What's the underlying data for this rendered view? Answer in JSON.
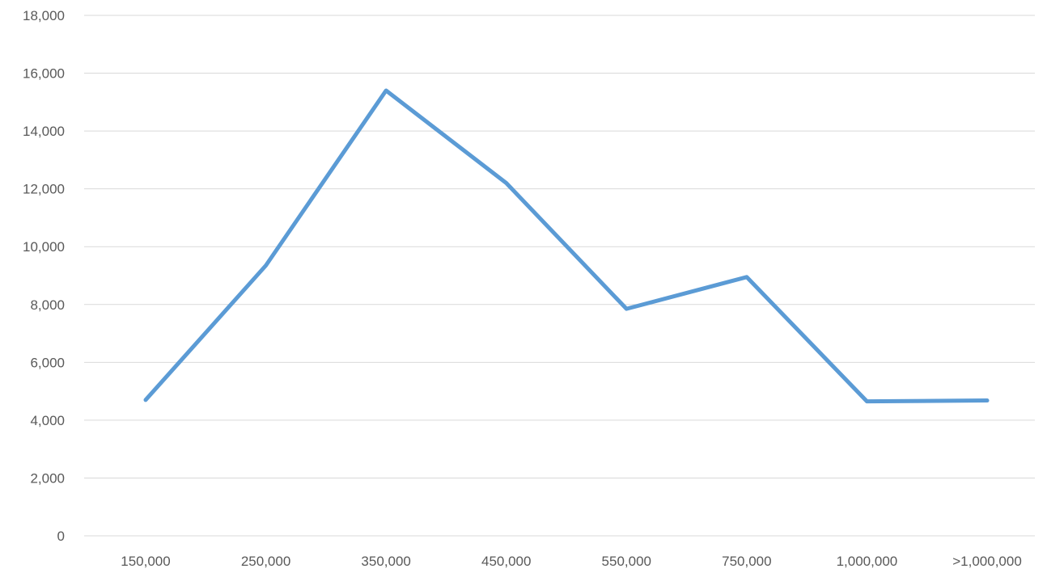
{
  "chart_data": {
    "type": "line",
    "title": "",
    "xlabel": "",
    "ylabel": "",
    "categories": [
      "150,000",
      "250,000",
      "350,000",
      "450,000",
      "550,000",
      "750,000",
      "1,000,000",
      ">1,000,000"
    ],
    "series": [
      {
        "values": [
          4700,
          9350,
          15400,
          12200,
          7850,
          8950,
          4650,
          4680
        ]
      }
    ],
    "ylim": [
      0,
      18000
    ],
    "yticks": [
      "0",
      "2,000",
      "4,000",
      "6,000",
      "8,000",
      "10,000",
      "12,000",
      "14,000",
      "16,000",
      "18,000"
    ],
    "grid": true,
    "legend": "none",
    "colors": {
      "series": "#5b9bd5",
      "grid": "#d9d9d9",
      "text": "#595959"
    }
  }
}
